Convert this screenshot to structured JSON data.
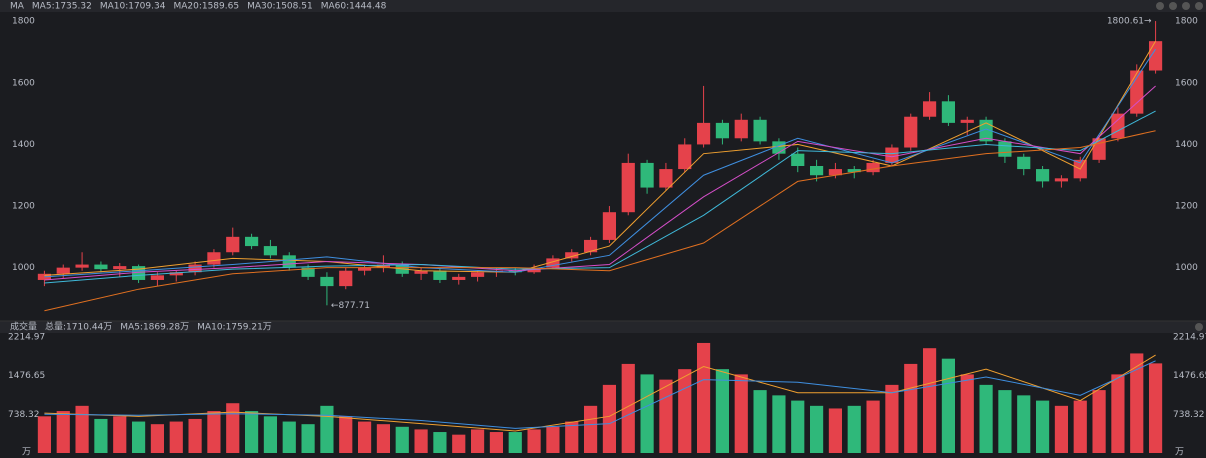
{
  "chart_data": [
    {
      "type": "candlestick",
      "title": "MA",
      "up_color": "#e5424b",
      "down_color": "#2fb87a",
      "ylim": [
        830,
        1830
      ],
      "yticks": [
        1000,
        1200,
        1400,
        1600,
        1800
      ],
      "grid": false,
      "candles": [
        [
          960,
          990,
          940,
          980
        ],
        [
          980,
          1010,
          965,
          1000
        ],
        [
          1000,
          1050,
          990,
          1010
        ],
        [
          1010,
          1020,
          985,
          995
        ],
        [
          995,
          1015,
          970,
          1005
        ],
        [
          1005,
          1010,
          950,
          960
        ],
        [
          960,
          985,
          940,
          975
        ],
        [
          975,
          990,
          955,
          985
        ],
        [
          985,
          1020,
          975,
          1010
        ],
        [
          1010,
          1060,
          1000,
          1050
        ],
        [
          1050,
          1130,
          1040,
          1100
        ],
        [
          1100,
          1110,
          1060,
          1070
        ],
        [
          1070,
          1090,
          1030,
          1040
        ],
        [
          1040,
          1050,
          990,
          1000
        ],
        [
          1000,
          1010,
          960,
          970
        ],
        [
          970,
          985,
          877.71,
          940
        ],
        [
          940,
          1000,
          930,
          990
        ],
        [
          990,
          1010,
          975,
          1000
        ],
        [
          1000,
          1040,
          985,
          1010
        ],
        [
          1010,
          1020,
          970,
          980
        ],
        [
          980,
          1000,
          960,
          990
        ],
        [
          990,
          1000,
          950,
          960
        ],
        [
          960,
          980,
          945,
          970
        ],
        [
          970,
          990,
          955,
          985
        ],
        [
          985,
          1000,
          970,
          990
        ],
        [
          990,
          1000,
          975,
          985
        ],
        [
          985,
          1010,
          980,
          1000
        ],
        [
          1000,
          1040,
          995,
          1030
        ],
        [
          1030,
          1060,
          1020,
          1050
        ],
        [
          1050,
          1100,
          1040,
          1090
        ],
        [
          1090,
          1200,
          1080,
          1180
        ],
        [
          1180,
          1370,
          1170,
          1340
        ],
        [
          1340,
          1350,
          1240,
          1260
        ],
        [
          1260,
          1340,
          1250,
          1320
        ],
        [
          1320,
          1420,
          1310,
          1400
        ],
        [
          1400,
          1590,
          1390,
          1470
        ],
        [
          1470,
          1480,
          1400,
          1420
        ],
        [
          1420,
          1500,
          1410,
          1480
        ],
        [
          1480,
          1490,
          1400,
          1410
        ],
        [
          1410,
          1420,
          1350,
          1370
        ],
        [
          1370,
          1390,
          1310,
          1330
        ],
        [
          1330,
          1350,
          1280,
          1300
        ],
        [
          1300,
          1340,
          1290,
          1320
        ],
        [
          1320,
          1330,
          1290,
          1310
        ],
        [
          1310,
          1350,
          1300,
          1340
        ],
        [
          1340,
          1400,
          1330,
          1390
        ],
        [
          1390,
          1500,
          1380,
          1490
        ],
        [
          1490,
          1570,
          1480,
          1540
        ],
        [
          1540,
          1560,
          1460,
          1470
        ],
        [
          1470,
          1490,
          1430,
          1480
        ],
        [
          1480,
          1490,
          1400,
          1410
        ],
        [
          1410,
          1420,
          1340,
          1360
        ],
        [
          1360,
          1370,
          1300,
          1320
        ],
        [
          1320,
          1330,
          1260,
          1280
        ],
        [
          1280,
          1300,
          1260,
          1290
        ],
        [
          1290,
          1360,
          1280,
          1350
        ],
        [
          1350,
          1430,
          1340,
          1420
        ],
        [
          1420,
          1520,
          1410,
          1500
        ],
        [
          1500,
          1660,
          1490,
          1640
        ],
        [
          1640,
          1800.61,
          1630,
          1735.32
        ]
      ],
      "ma_x": [
        0,
        5,
        10,
        15,
        20,
        25,
        30,
        35,
        40,
        45,
        50,
        55,
        59
      ],
      "series": [
        {
          "name": "MA5:1735.32",
          "color": "#f0a030",
          "values": [
            975,
            995,
            1030,
            1020,
            990,
            985,
            1070,
            1370,
            1400,
            1330,
            1470,
            1320,
            1735.32
          ]
        },
        {
          "name": "MA10:1709.34",
          "color": "#3f8fe0",
          "values": [
            970,
            990,
            1010,
            1035,
            1000,
            985,
            1040,
            1300,
            1420,
            1340,
            1450,
            1340,
            1709.34
          ]
        },
        {
          "name": "MA20:1589.65",
          "color": "#d44ec8",
          "values": [
            960,
            985,
            1000,
            1020,
            1010,
            990,
            1010,
            1230,
            1410,
            1360,
            1420,
            1370,
            1589.65
          ]
        },
        {
          "name": "MA30:1508.51",
          "color": "#3fb8d8",
          "values": [
            950,
            975,
            995,
            1005,
            1010,
            995,
            1000,
            1170,
            1380,
            1370,
            1400,
            1380,
            1508.51
          ]
        },
        {
          "name": "MA60:1444.48",
          "color": "#e07020",
          "values": [
            860,
            930,
            980,
            1000,
            1000,
            1000,
            990,
            1080,
            1280,
            1330,
            1370,
            1390,
            1444.48
          ]
        }
      ],
      "annotations": [
        {
          "label": "1800.61→",
          "value": 1800.61,
          "x": 59,
          "anchor": "end"
        },
        {
          "label": "←877.71",
          "value": 877.71,
          "x": 15,
          "anchor": "start"
        }
      ]
    },
    {
      "type": "volume",
      "title": "成交量",
      "total_label": "总量:1710.44万",
      "total_color": "#e5424b",
      "unit": "万",
      "ylim": [
        0,
        2290
      ],
      "yticks": [
        738.32,
        1476.65,
        2214.97
      ],
      "values": [
        700,
        800,
        900,
        650,
        700,
        600,
        550,
        600,
        650,
        800,
        950,
        800,
        700,
        600,
        550,
        900,
        700,
        600,
        550,
        500,
        450,
        400,
        350,
        450,
        400,
        400,
        450,
        500,
        600,
        900,
        1300,
        1700,
        1500,
        1400,
        1600,
        2100,
        1600,
        1500,
        1200,
        1100,
        1000,
        900,
        850,
        900,
        1000,
        1300,
        1700,
        2000,
        1800,
        1500,
        1300,
        1200,
        1100,
        1000,
        900,
        1000,
        1200,
        1500,
        1900,
        1710.44
      ],
      "ma_x": [
        0,
        5,
        10,
        15,
        20,
        25,
        30,
        35,
        40,
        45,
        50,
        55,
        59
      ],
      "series": [
        {
          "name": "MA5:1869.28万",
          "color": "#f0a030",
          "values": [
            760,
            700,
            780,
            700,
            560,
            420,
            700,
            1650,
            1150,
            1150,
            1600,
            1000,
            1869.28
          ]
        },
        {
          "name": "MA10:1759.21万",
          "color": "#3f8fe0",
          "values": [
            740,
            720,
            750,
            720,
            620,
            470,
            560,
            1400,
            1350,
            1150,
            1450,
            1100,
            1759.21
          ]
        }
      ]
    }
  ]
}
